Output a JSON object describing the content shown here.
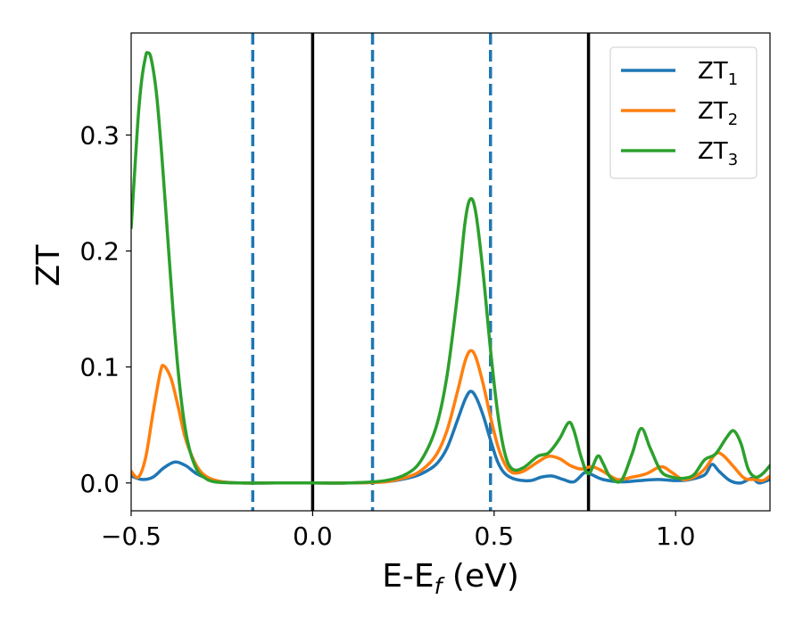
{
  "chart_data": {
    "type": "line",
    "xlabel": "E-E",
    "xlabel_sub": "f",
    "xlabel_unit": " (eV)",
    "ylabel": "ZT",
    "xlim": [
      -0.5,
      1.26
    ],
    "ylim": [
      -0.024,
      0.388
    ],
    "x_ticks": [
      -0.5,
      0.0,
      0.5,
      1.0
    ],
    "x_tick_labels": [
      "−0.5",
      "0.0",
      "0.5",
      "1.0"
    ],
    "y_ticks": [
      0.0,
      0.1,
      0.2,
      0.3
    ],
    "y_tick_labels": [
      "0.0",
      "0.1",
      "0.2",
      "0.3"
    ],
    "grid": false,
    "legend_position": "top-right",
    "vertical_lines": [
      {
        "x": -0.165,
        "style": "dashed",
        "color": "#1f77b4"
      },
      {
        "x": 0.0,
        "style": "solid",
        "color": "#000000"
      },
      {
        "x": 0.165,
        "style": "dashed",
        "color": "#1f77b4"
      },
      {
        "x": 0.49,
        "style": "dashed",
        "color": "#1f77b4"
      },
      {
        "x": 0.76,
        "style": "solid",
        "color": "#000000"
      }
    ],
    "series": [
      {
        "name": "ZT",
        "name_sub": "1",
        "color": "#1f77b4",
        "points": [
          [
            -0.5,
            0.006
          ],
          [
            -0.47,
            0.003
          ],
          [
            -0.44,
            0.005
          ],
          [
            -0.41,
            0.013
          ],
          [
            -0.38,
            0.018
          ],
          [
            -0.35,
            0.015
          ],
          [
            -0.32,
            0.008
          ],
          [
            -0.29,
            0.004
          ],
          [
            -0.25,
            0.001
          ],
          [
            -0.2,
            0.0
          ],
          [
            -0.1,
            0.0
          ],
          [
            0.0,
            0.0
          ],
          [
            0.1,
            0.0
          ],
          [
            0.2,
            0.001
          ],
          [
            0.26,
            0.004
          ],
          [
            0.3,
            0.008
          ],
          [
            0.34,
            0.016
          ],
          [
            0.37,
            0.03
          ],
          [
            0.4,
            0.055
          ],
          [
            0.42,
            0.072
          ],
          [
            0.435,
            0.079
          ],
          [
            0.45,
            0.074
          ],
          [
            0.47,
            0.058
          ],
          [
            0.49,
            0.037
          ],
          [
            0.51,
            0.018
          ],
          [
            0.53,
            0.008
          ],
          [
            0.56,
            0.003
          ],
          [
            0.6,
            0.002
          ],
          [
            0.63,
            0.005
          ],
          [
            0.66,
            0.006
          ],
          [
            0.69,
            0.003
          ],
          [
            0.72,
            0.001
          ],
          [
            0.75,
            0.009
          ],
          [
            0.77,
            0.007
          ],
          [
            0.8,
            0.003
          ],
          [
            0.85,
            0.001
          ],
          [
            0.9,
            0.002
          ],
          [
            0.95,
            0.003
          ],
          [
            1.0,
            0.002
          ],
          [
            1.04,
            0.003
          ],
          [
            1.08,
            0.007
          ],
          [
            1.1,
            0.016
          ],
          [
            1.12,
            0.01
          ],
          [
            1.15,
            0.002
          ],
          [
            1.18,
            0.0
          ],
          [
            1.21,
            0.004
          ],
          [
            1.23,
            0.0
          ],
          [
            1.26,
            0.003
          ]
        ]
      },
      {
        "name": "ZT",
        "name_sub": "2",
        "color": "#ff7f0e",
        "points": [
          [
            -0.5,
            0.01
          ],
          [
            -0.48,
            0.005
          ],
          [
            -0.46,
            0.022
          ],
          [
            -0.44,
            0.06
          ],
          [
            -0.42,
            0.095
          ],
          [
            -0.41,
            0.101
          ],
          [
            -0.39,
            0.09
          ],
          [
            -0.37,
            0.065
          ],
          [
            -0.35,
            0.038
          ],
          [
            -0.32,
            0.015
          ],
          [
            -0.29,
            0.005
          ],
          [
            -0.25,
            0.001
          ],
          [
            -0.2,
            0.0
          ],
          [
            -0.1,
            0.0
          ],
          [
            0.0,
            0.0
          ],
          [
            0.1,
            0.0
          ],
          [
            0.2,
            0.001
          ],
          [
            0.26,
            0.005
          ],
          [
            0.3,
            0.011
          ],
          [
            0.34,
            0.024
          ],
          [
            0.37,
            0.045
          ],
          [
            0.4,
            0.08
          ],
          [
            0.42,
            0.105
          ],
          [
            0.435,
            0.114
          ],
          [
            0.45,
            0.108
          ],
          [
            0.47,
            0.085
          ],
          [
            0.49,
            0.057
          ],
          [
            0.51,
            0.032
          ],
          [
            0.53,
            0.016
          ],
          [
            0.55,
            0.009
          ],
          [
            0.58,
            0.01
          ],
          [
            0.62,
            0.018
          ],
          [
            0.65,
            0.023
          ],
          [
            0.68,
            0.021
          ],
          [
            0.71,
            0.015
          ],
          [
            0.74,
            0.012
          ],
          [
            0.77,
            0.014
          ],
          [
            0.8,
            0.01
          ],
          [
            0.84,
            0.003
          ],
          [
            0.88,
            0.005
          ],
          [
            0.92,
            0.008
          ],
          [
            0.96,
            0.014
          ],
          [
            0.99,
            0.009
          ],
          [
            1.02,
            0.003
          ],
          [
            1.05,
            0.005
          ],
          [
            1.08,
            0.012
          ],
          [
            1.11,
            0.025
          ],
          [
            1.13,
            0.024
          ],
          [
            1.16,
            0.014
          ],
          [
            1.19,
            0.004
          ],
          [
            1.22,
            0.003
          ],
          [
            1.24,
            0.002
          ],
          [
            1.26,
            0.006
          ]
        ]
      },
      {
        "name": "ZT",
        "name_sub": "3",
        "color": "#2ca02c",
        "points": [
          [
            -0.5,
            0.22
          ],
          [
            -0.49,
            0.27
          ],
          [
            -0.48,
            0.318
          ],
          [
            -0.47,
            0.35
          ],
          [
            -0.46,
            0.368
          ],
          [
            -0.455,
            0.371
          ],
          [
            -0.445,
            0.366
          ],
          [
            -0.43,
            0.335
          ],
          [
            -0.415,
            0.28
          ],
          [
            -0.4,
            0.215
          ],
          [
            -0.385,
            0.15
          ],
          [
            -0.37,
            0.095
          ],
          [
            -0.355,
            0.055
          ],
          [
            -0.34,
            0.03
          ],
          [
            -0.32,
            0.012
          ],
          [
            -0.3,
            0.005
          ],
          [
            -0.27,
            0.001
          ],
          [
            -0.2,
            0.0
          ],
          [
            -0.1,
            0.0
          ],
          [
            0.0,
            0.0
          ],
          [
            0.1,
            0.0
          ],
          [
            0.2,
            0.002
          ],
          [
            0.26,
            0.008
          ],
          [
            0.3,
            0.02
          ],
          [
            0.34,
            0.048
          ],
          [
            0.37,
            0.092
          ],
          [
            0.4,
            0.165
          ],
          [
            0.42,
            0.225
          ],
          [
            0.435,
            0.245
          ],
          [
            0.45,
            0.232
          ],
          [
            0.47,
            0.18
          ],
          [
            0.49,
            0.115
          ],
          [
            0.51,
            0.06
          ],
          [
            0.53,
            0.025
          ],
          [
            0.55,
            0.012
          ],
          [
            0.58,
            0.013
          ],
          [
            0.62,
            0.023
          ],
          [
            0.65,
            0.026
          ],
          [
            0.68,
            0.038
          ],
          [
            0.705,
            0.052
          ],
          [
            0.72,
            0.045
          ],
          [
            0.74,
            0.022
          ],
          [
            0.76,
            0.008
          ],
          [
            0.785,
            0.023
          ],
          [
            0.8,
            0.017
          ],
          [
            0.82,
            0.005
          ],
          [
            0.85,
            0.002
          ],
          [
            0.88,
            0.025
          ],
          [
            0.905,
            0.047
          ],
          [
            0.93,
            0.03
          ],
          [
            0.96,
            0.01
          ],
          [
            0.99,
            0.005
          ],
          [
            1.02,
            0.004
          ],
          [
            1.05,
            0.007
          ],
          [
            1.08,
            0.02
          ],
          [
            1.11,
            0.025
          ],
          [
            1.14,
            0.039
          ],
          [
            1.16,
            0.045
          ],
          [
            1.18,
            0.034
          ],
          [
            1.2,
            0.012
          ],
          [
            1.22,
            0.005
          ],
          [
            1.24,
            0.008
          ],
          [
            1.26,
            0.015
          ]
        ]
      }
    ]
  }
}
